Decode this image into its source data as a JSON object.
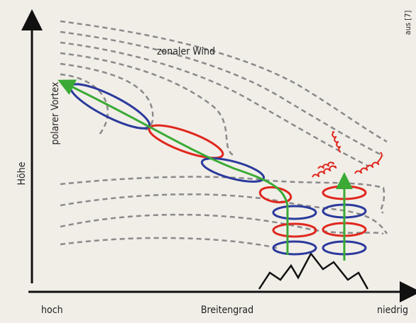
{
  "axes": {
    "y_label": "Höhe",
    "x_left": "hoch",
    "x_center": "Breitengrad",
    "x_right": "niedrig"
  },
  "labels": {
    "zonal_wind": "zonaler Wind",
    "polar_vortex": "polarer Vortex"
  },
  "source": "aus [7]"
}
